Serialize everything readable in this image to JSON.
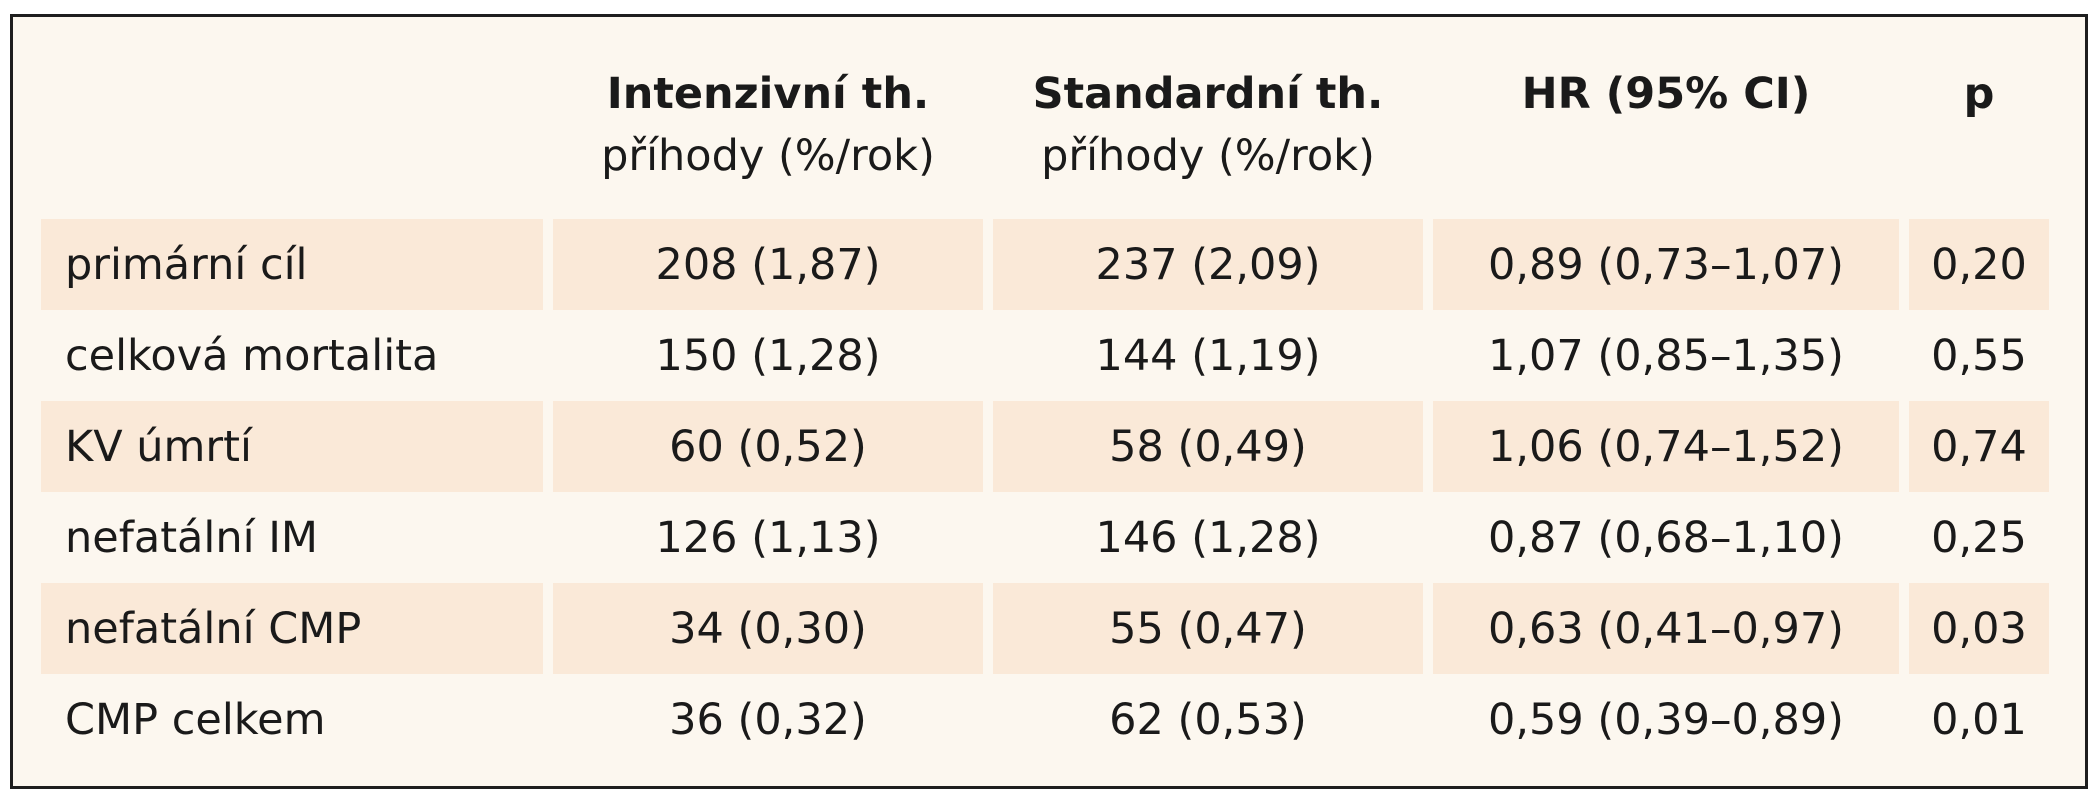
{
  "table": {
    "headers": [
      {
        "line1": "",
        "line2": ""
      },
      {
        "line1": "Intenzivní th.",
        "line2": "příhody (%/rok)"
      },
      {
        "line1": "Standardní th.",
        "line2": "příhody (%/rok)"
      },
      {
        "line1": "HR (95% CI)",
        "line2": ""
      },
      {
        "line1": "p",
        "line2": ""
      }
    ],
    "rows": [
      {
        "label": "primární cíl",
        "intensive": "208 (1,87)",
        "standard": "237 (2,09)",
        "hr": "0,89 (0,73–1,07)",
        "p": "0,20"
      },
      {
        "label": "celková mortalita",
        "intensive": "150 (1,28)",
        "standard": "144 (1,19)",
        "hr": "1,07 (0,85–1,35)",
        "p": "0,55"
      },
      {
        "label": "KV úmrtí",
        "intensive": "60 (0,52)",
        "standard": "58 (0,49)",
        "hr": "1,06 (0,74–1,52)",
        "p": "0,74"
      },
      {
        "label": "nefatální IM",
        "intensive": "126 (1,13)",
        "standard": "146 (1,28)",
        "hr": "0,87 (0,68–1,10)",
        "p": "0,25"
      },
      {
        "label": "nefatální CMP",
        "intensive": "34 (0,30)",
        "standard": "55 (0,47)",
        "hr": "0,63 (0,41–0,97)",
        "p": "0,03"
      },
      {
        "label": "CMP celkem",
        "intensive": "36 (0,32)",
        "standard": "62 (0,53)",
        "hr": "0,59 (0,39–0,89)",
        "p": "0,01"
      }
    ]
  },
  "colors": {
    "background": "#fcf7ef",
    "row_shade": "#fae9d8",
    "border": "#1e1e1e",
    "text": "#1a1a1a"
  }
}
